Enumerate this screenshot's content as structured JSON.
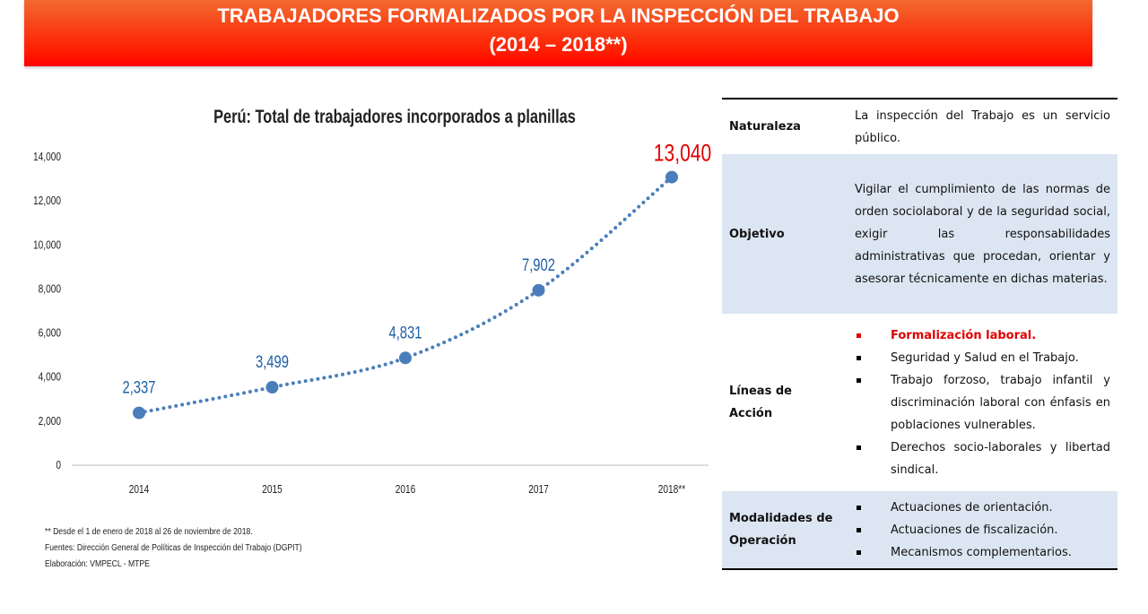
{
  "header": {
    "line1": "TRABAJADORES FORMALIZADOS POR LA INSPECCIÓN DEL TRABAJO",
    "line2": "(2014 – 2018**)"
  },
  "chart_data": {
    "type": "line",
    "title": "Perú: Total de trabajadores incorporados a planillas",
    "categories": [
      "2014",
      "2015",
      "2016",
      "2017",
      "2018**"
    ],
    "values": [
      2337,
      3499,
      4831,
      7902,
      13040
    ],
    "data_labels": [
      "2,337",
      "3,499",
      "4,831",
      "7,902",
      "13,040"
    ],
    "ylim": [
      0,
      14000
    ],
    "yticks": [
      "0",
      "2,000",
      "4,000",
      "6,000",
      "8,000",
      "10,000",
      "12,000",
      "14,000"
    ],
    "line_color": "#4a7ebb",
    "label_color": "#1f5fa8",
    "highlight_color": "#e00000",
    "grid": false
  },
  "notes": {
    "note1": "** Desde el 1 de enero de 2018 al 26 de noviembre de 2018.",
    "note2": "Fuentes:  Dirección General de Políticas de Inspección del Trabajo (DGPIT)",
    "note3": "Elaboración: VMPECL - MTPE"
  },
  "table": {
    "naturaleza": {
      "label": "Naturaleza",
      "text": "La inspección del Trabajo es un servicio público."
    },
    "objetivo": {
      "label": "Objetivo",
      "text": "Vigilar el cumplimiento de las normas de orden sociolaboral y de la seguridad social, exigir las responsabilidades administrativas que procedan, orientar y asesorar técnicamente en dichas materias."
    },
    "lineas": {
      "label1": "Líneas de",
      "label2": "Acción",
      "items": [
        "Formalización laboral.",
        "Seguridad y Salud en el Trabajo.",
        "Trabajo forzoso, trabajo infantil y discriminación laboral con énfasis en poblaciones vulnerables.",
        "Derechos socio-laborales y libertad sindical."
      ]
    },
    "modalidades": {
      "label1": "Modalidades de",
      "label2": "Operación",
      "items": [
        "Actuaciones de orientación.",
        "Actuaciones de fiscalización.",
        "Mecanismos complementarios."
      ]
    }
  }
}
